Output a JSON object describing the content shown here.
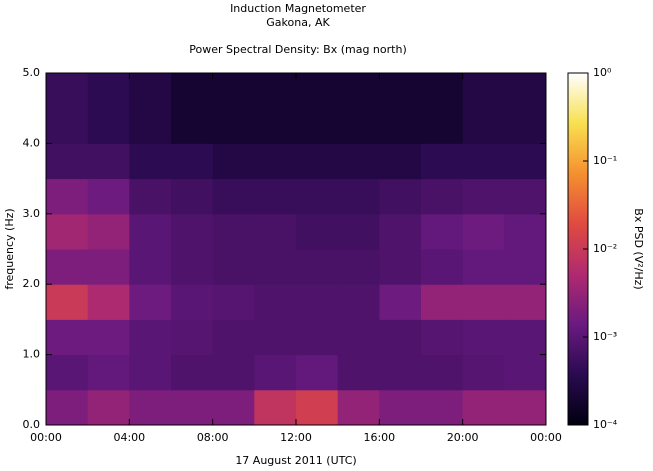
{
  "chart_data": {
    "type": "heatmap",
    "title": "Induction Magnetometer",
    "subtitle": "Gakona, AK",
    "plot_title": "Power Spectral Density: Bx (mag north)",
    "x_label": "17 August 2011 (UTC)",
    "y_label": "frequency (Hz)",
    "colorbar_label": "Bx PSD (V²/Hz)",
    "xlim": [
      0,
      24
    ],
    "xticks": [
      {
        "value": 0,
        "label": "00:00"
      },
      {
        "value": 4,
        "label": "04:00"
      },
      {
        "value": 8,
        "label": "08:00"
      },
      {
        "value": 12,
        "label": "12:00"
      },
      {
        "value": 16,
        "label": "16:00"
      },
      {
        "value": 20,
        "label": "20:00"
      },
      {
        "value": 24,
        "label": "00:00"
      }
    ],
    "ylim": [
      0,
      5
    ],
    "yticks": [
      {
        "value": 0,
        "label": "0.0"
      },
      {
        "value": 1,
        "label": "1.0"
      },
      {
        "value": 2,
        "label": "2.0"
      },
      {
        "value": 3,
        "label": "3.0"
      },
      {
        "value": 4,
        "label": "4.0"
      },
      {
        "value": 5,
        "label": "5.0"
      }
    ],
    "clim": [
      0.0001,
      1
    ],
    "clog": true,
    "cticks": [
      {
        "value": 0.0001,
        "label": "10⁻⁴"
      },
      {
        "value": 0.001,
        "label": "10⁻³"
      },
      {
        "value": 0.01,
        "label": "10⁻²"
      },
      {
        "value": 0.1,
        "label": "10⁻¹"
      },
      {
        "value": 1,
        "label": "10⁰"
      }
    ],
    "colormap": [
      "#000010",
      "#2a0a50",
      "#6a1a80",
      "#b02a70",
      "#e04a40",
      "#f59030",
      "#f8e050",
      "#ffffff"
    ],
    "xbins": [
      0,
      2,
      4,
      6,
      8,
      10,
      12,
      14,
      16,
      18,
      20,
      22,
      24
    ],
    "ybins": [
      0,
      0.5,
      1,
      1.5,
      2,
      2.5,
      3,
      3.5,
      4,
      4.5,
      5
    ],
    "values": [
      [
        0.002,
        0.003,
        0.002,
        0.002,
        0.002,
        0.008,
        0.012,
        0.003,
        0.002,
        0.002,
        0.003,
        0.003
      ],
      [
        0.001,
        0.0012,
        0.001,
        0.0008,
        0.0008,
        0.001,
        0.0012,
        0.0008,
        0.0008,
        0.0008,
        0.0009,
        0.001
      ],
      [
        0.0015,
        0.0015,
        0.001,
        0.0009,
        0.0008,
        0.0008,
        0.0008,
        0.0008,
        0.0008,
        0.0009,
        0.001,
        0.001
      ],
      [
        0.01,
        0.005,
        0.0015,
        0.001,
        0.0009,
        0.0008,
        0.0008,
        0.0008,
        0.0015,
        0.003,
        0.003,
        0.003
      ],
      [
        0.002,
        0.002,
        0.001,
        0.0008,
        0.0007,
        0.0007,
        0.0007,
        0.0007,
        0.0008,
        0.001,
        0.0012,
        0.0012
      ],
      [
        0.004,
        0.003,
        0.001,
        0.0008,
        0.0007,
        0.0007,
        0.0006,
        0.0006,
        0.0008,
        0.0012,
        0.0015,
        0.0012
      ],
      [
        0.002,
        0.0015,
        0.0007,
        0.0006,
        0.0005,
        0.0005,
        0.0005,
        0.0005,
        0.0006,
        0.0007,
        0.0008,
        0.0008
      ],
      [
        0.0006,
        0.0006,
        0.0004,
        0.0004,
        0.0003,
        0.0003,
        0.0003,
        0.0003,
        0.0003,
        0.0004,
        0.0004,
        0.0004
      ],
      [
        0.0005,
        0.0004,
        0.0003,
        0.0002,
        0.0002,
        0.0002,
        0.0002,
        0.0002,
        0.0002,
        0.0002,
        0.0003,
        0.0003
      ],
      [
        0.0005,
        0.0004,
        0.0003,
        0.0002,
        0.0002,
        0.0002,
        0.0002,
        0.0002,
        0.0002,
        0.0002,
        0.0003,
        0.0003
      ]
    ]
  }
}
